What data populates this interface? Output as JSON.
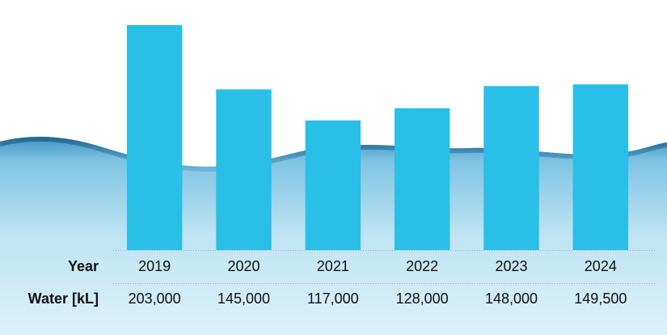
{
  "chart_data": {
    "type": "bar",
    "category_title": "Year",
    "value_title": "Water [kL]",
    "categories": [
      "2019",
      "2020",
      "2021",
      "2022",
      "2023",
      "2024"
    ],
    "values": [
      203000,
      145000,
      117000,
      128000,
      148000,
      149500
    ],
    "value_labels": [
      "203,000",
      "145,000",
      "117,000",
      "128,000",
      "148,000",
      "149,500"
    ],
    "color": "#29bfe6",
    "ylim": [
      0,
      203000
    ]
  }
}
